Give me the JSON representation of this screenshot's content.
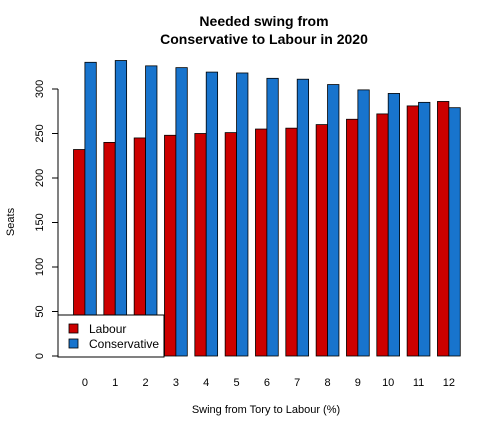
{
  "chart_data": {
    "type": "bar",
    "title_line1": "Needed swing from",
    "title_line2": "Conservative to Labour in 2020",
    "xlabel": "Swing from Tory to Labour (%)",
    "ylabel": "Seats",
    "categories": [
      "0",
      "1",
      "2",
      "3",
      "4",
      "5",
      "6",
      "7",
      "8",
      "9",
      "10",
      "11",
      "12"
    ],
    "ylim": [
      0,
      330
    ],
    "yticks": [
      0,
      50,
      100,
      150,
      200,
      250,
      300
    ],
    "series": [
      {
        "name": "Labour",
        "color": "#CC0000",
        "values": [
          232,
          240,
          245,
          248,
          250,
          251,
          255,
          256,
          260,
          266,
          272,
          281,
          286
        ]
      },
      {
        "name": "Conservative",
        "color": "#1874CD",
        "values": [
          330,
          332,
          326,
          324,
          319,
          318,
          312,
          311,
          305,
          299,
          295,
          285,
          279
        ]
      }
    ],
    "legend_position": "bottom-left",
    "grid": false
  }
}
